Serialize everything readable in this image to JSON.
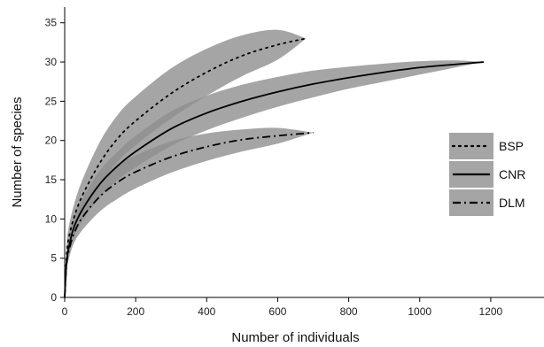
{
  "chart_data": {
    "type": "line",
    "title": "",
    "xlabel": "Number of individuals",
    "ylabel": "Number of species",
    "xlim": [
      0,
      1350
    ],
    "ylim": [
      0,
      37
    ],
    "xticks": [
      0,
      200,
      400,
      600,
      800,
      1000,
      1200
    ],
    "yticks": [
      0,
      5,
      10,
      15,
      20,
      25,
      30,
      35
    ],
    "grid": false,
    "legend_position": "right",
    "band_color": "#8f8f8f",
    "series": [
      {
        "name": "BSP",
        "line_style": "dotted",
        "x": [
          0,
          5,
          10,
          25,
          50,
          100,
          150,
          200,
          300,
          400,
          500,
          600,
          680
        ],
        "y": [
          0,
          5.0,
          7.2,
          10.0,
          13.0,
          17.2,
          20.3,
          22.5,
          26.0,
          28.7,
          30.8,
          32.2,
          33.0
        ],
        "lower": [
          0,
          4.0,
          5.8,
          8.4,
          11.0,
          14.5,
          17.3,
          19.4,
          22.8,
          25.7,
          28.2,
          30.3,
          33.0
        ],
        "upper": [
          0,
          6.0,
          8.6,
          11.6,
          15.0,
          19.9,
          23.3,
          25.6,
          29.2,
          31.7,
          33.4,
          34.1,
          33.0
        ]
      },
      {
        "name": "CNR",
        "line_style": "solid",
        "x": [
          0,
          5,
          10,
          25,
          50,
          100,
          150,
          200,
          300,
          400,
          500,
          600,
          700,
          800,
          900,
          1000,
          1100,
          1180
        ],
        "y": [
          0,
          4.3,
          6.0,
          8.8,
          11.2,
          14.5,
          16.8,
          18.6,
          21.5,
          23.5,
          25.0,
          26.2,
          27.2,
          28.0,
          28.7,
          29.3,
          29.7,
          30.0
        ],
        "lower": [
          0,
          3.5,
          5.0,
          7.5,
          9.8,
          12.8,
          15.0,
          16.6,
          19.3,
          21.3,
          22.9,
          24.3,
          25.5,
          26.6,
          27.5,
          28.4,
          29.3,
          30.0
        ],
        "upper": [
          0,
          5.1,
          7.0,
          10.1,
          12.6,
          16.2,
          18.6,
          20.6,
          23.7,
          25.7,
          27.1,
          28.1,
          28.9,
          29.4,
          29.8,
          30.1,
          30.2,
          30.0
        ]
      },
      {
        "name": "DLM",
        "line_style": "dashdot",
        "x": [
          0,
          5,
          10,
          25,
          50,
          100,
          150,
          200,
          300,
          400,
          500,
          600,
          700
        ],
        "y": [
          0,
          4.0,
          5.6,
          8.0,
          10.2,
          12.9,
          14.7,
          16.0,
          17.9,
          19.2,
          20.1,
          20.6,
          21.0
        ],
        "lower": [
          0,
          3.2,
          4.6,
          6.8,
          8.6,
          11.0,
          12.6,
          13.9,
          15.9,
          17.4,
          18.6,
          19.6,
          21.0
        ],
        "upper": [
          0,
          4.8,
          6.6,
          9.2,
          11.8,
          14.8,
          16.8,
          18.1,
          19.9,
          20.9,
          21.4,
          21.6,
          21.0
        ]
      }
    ]
  }
}
